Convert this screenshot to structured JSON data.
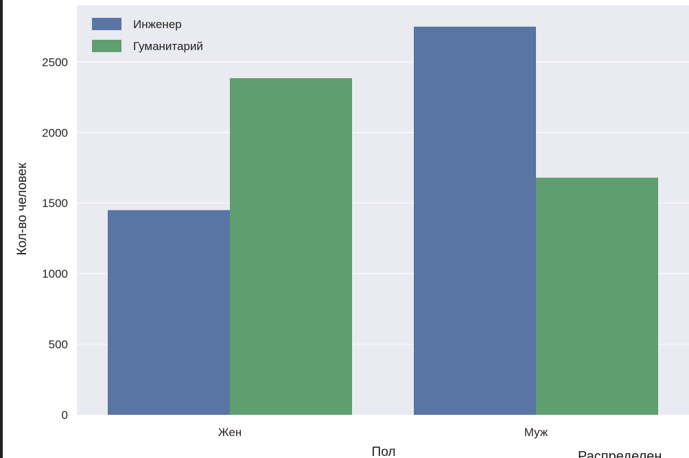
{
  "chart_data": {
    "type": "bar",
    "title": "",
    "xlabel": "Пол",
    "ylabel": "Кол-во человек",
    "categories": [
      "Жен",
      "Муж"
    ],
    "series": [
      {
        "name": "Инженер",
        "values": [
          1450,
          2750
        ],
        "color": "#5975a4"
      },
      {
        "name": "Гуманитарий",
        "values": [
          2385,
          1680
        ],
        "color": "#5f9e6e"
      }
    ],
    "yticks": [
      "0",
      "500",
      "1000",
      "1500",
      "2000",
      "2500"
    ],
    "ylim": [
      0,
      2900
    ],
    "grid": true,
    "legend": "top-left",
    "style": {
      "plot_background": "#eaeaf2",
      "grid_color": "#ffffff"
    }
  },
  "cut_text": {
    "bottom_right": "Распределен"
  }
}
